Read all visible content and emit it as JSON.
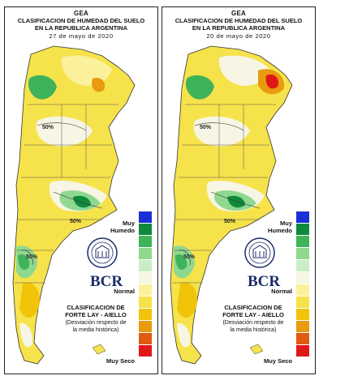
{
  "header": {
    "org": "GEA",
    "title_line1": "CLASIFICACION DE HUMEDAD DEL SUELO",
    "title_line2": "EN LA REPUBLICA ARGENTINA"
  },
  "panels": [
    {
      "date": "27 de mayo de 2020"
    },
    {
      "date": "20 de mayo de 2020"
    }
  ],
  "legend": {
    "top_label": "Muy Humedo",
    "middle_label": "Normal",
    "bottom_label": "Muy Seco",
    "colors": [
      "#1a2fd6",
      "#0f8a3c",
      "#3fb35a",
      "#8fd88f",
      "#c9eec4",
      "#f7f5e3",
      "#fbf19a",
      "#f6e24a",
      "#f1c40a",
      "#e89a10",
      "#e05a10",
      "#e01818"
    ]
  },
  "method": {
    "line1": "CLASIFICACION DE",
    "line2": "FORTE LAY - AIELLO",
    "note1": "(Desviación respecto de",
    "note2": "la media histórica)"
  },
  "logo": {
    "text": "BCR"
  },
  "isolines": {
    "label": "50%"
  }
}
